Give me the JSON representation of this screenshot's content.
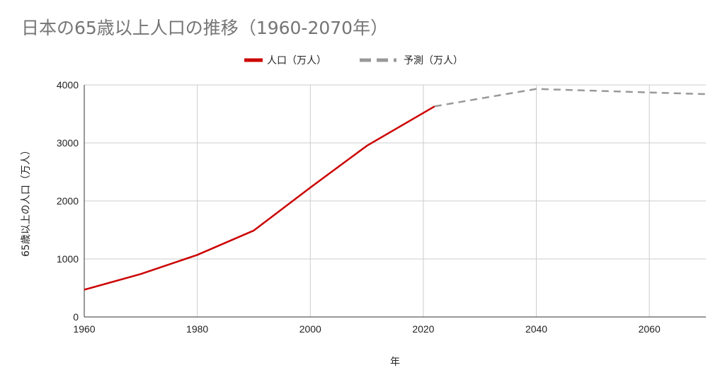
{
  "chart_data": {
    "type": "line",
    "title": "日本の65歳以上人口の推移（1960-2070年）",
    "xlabel": "年",
    "ylabel": "65歳以上の人口（万人）",
    "xlim": [
      1960,
      2070
    ],
    "ylim": [
      0,
      4000
    ],
    "x_ticks": [
      1960,
      1980,
      2000,
      2020,
      2040,
      2060
    ],
    "y_ticks": [
      0,
      1000,
      2000,
      3000,
      4000
    ],
    "grid": true,
    "legend_position": "top-center",
    "series": [
      {
        "name": "人口（万人）",
        "color": "#cc0000",
        "style": "solid",
        "points": [
          [
            1960,
            470
          ],
          [
            1970,
            740
          ],
          [
            1980,
            1070
          ],
          [
            1990,
            1490
          ],
          [
            2000,
            2230
          ],
          [
            2010,
            2950
          ],
          [
            2022,
            3630
          ]
        ]
      },
      {
        "name": "予測（万人）",
        "color": "#999999",
        "style": "dashed",
        "points": [
          [
            2022,
            3630
          ],
          [
            2040,
            3930
          ],
          [
            2060,
            3870
          ],
          [
            2070,
            3840
          ]
        ]
      }
    ]
  }
}
